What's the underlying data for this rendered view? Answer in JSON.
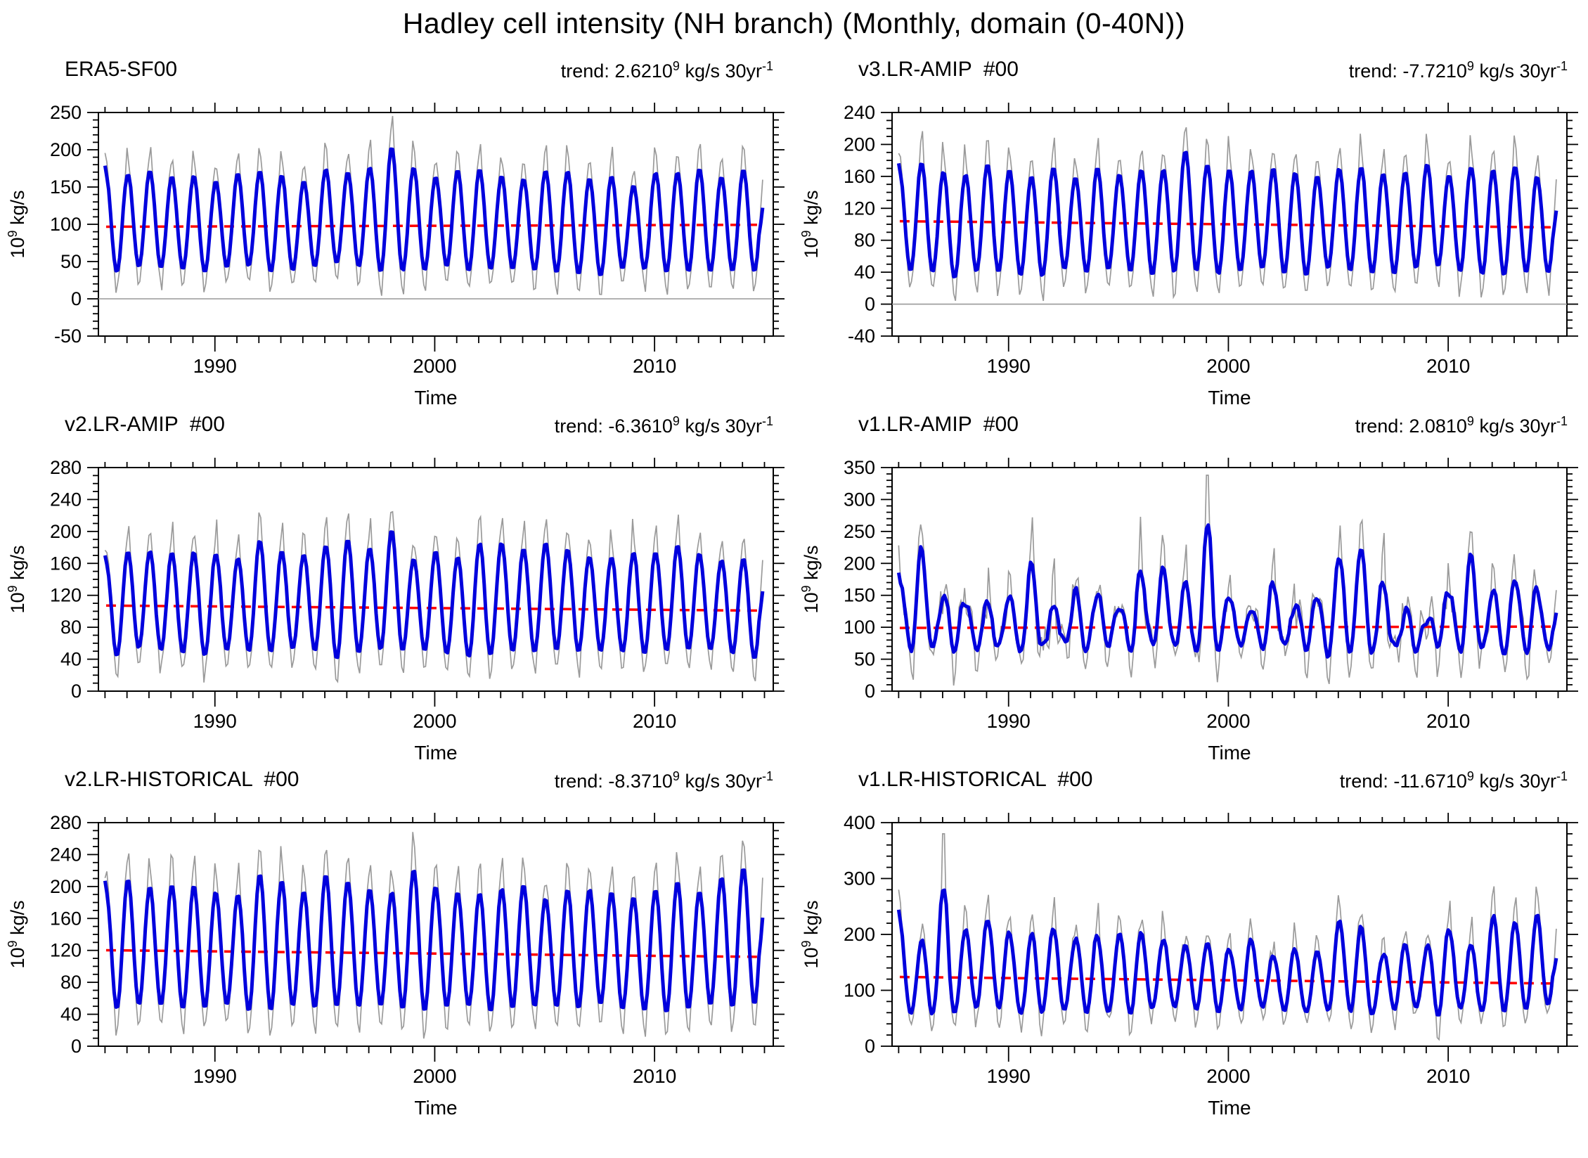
{
  "figure": {
    "title": "Hadley cell intensity (NH branch) (Monthly, domain (0-40N))"
  },
  "chart_data": {
    "type": "line",
    "title": "Hadley cell intensity (NH branch) (Monthly, domain (0-40N))",
    "xlabel": "Time",
    "ylabel": {
      "base": "10",
      "exp": "9",
      "unit": " kg/s"
    },
    "x_start_year": 1985,
    "x_years": 30,
    "xlim": [
      1984.7,
      2015.4
    ],
    "x_major_ticks": [
      1990,
      2000,
      2010
    ],
    "x_minor_step": 1,
    "series": [
      {
        "name": "monthly-raw",
        "color": "#9a9a9a"
      },
      {
        "name": "smoothed",
        "color": "#0000dd"
      },
      {
        "name": "linear-trend-per-30yr",
        "color": "#ff0000",
        "style": "dashed"
      }
    ],
    "colors": {
      "axis": "#000000",
      "zero_line": "#999999"
    },
    "panels": [
      {
        "name": "ERA5-SF00",
        "trend": {
          "text": "trend: 2.6210",
          "exp": "9",
          "unit": " kg/s 30yr",
          "unit_exp": "-1",
          "value": 2.62
        },
        "mean": 98,
        "ylim": [
          -50,
          250
        ],
        "ymajor": 50,
        "yminor": 10,
        "zero_line": true,
        "irregular": false,
        "sigma": 3.5,
        "spike": 30,
        "harm_max": 0,
        "seed": 11,
        "clamp_low": 2,
        "peaks": [
          178,
          185,
          190,
          186,
          182,
          178,
          186,
          192,
          183,
          176,
          183,
          190,
          186,
          228,
          190,
          186,
          190,
          194,
          186,
          181,
          186,
          191,
          184,
          178,
          170,
          183,
          193,
          188,
          182,
          186
        ],
        "troughs": [
          14,
          20,
          26,
          21,
          16,
          20,
          25,
          19,
          15,
          21,
          27,
          31,
          20,
          14,
          19,
          24,
          20,
          15,
          19,
          24,
          20,
          15,
          11,
          19,
          25,
          20,
          15,
          19,
          15,
          20
        ],
        "gray_spikes": {}
      },
      {
        "name": "v3.LR-AMIP  #00",
        "trend": {
          "text": "trend: -7.7210",
          "exp": "9",
          "unit": " kg/s 30yr",
          "unit_exp": "-1",
          "value": -7.72
        },
        "mean": 100,
        "ylim": [
          -40,
          240
        ],
        "ymajor": 40,
        "yminor": 10,
        "zero_line": true,
        "irregular": false,
        "sigma": 3.5,
        "spike": 32,
        "harm_max": 0,
        "seed": 22,
        "clamp_low": 2,
        "peaks": [
          180,
          190,
          184,
          175,
          191,
          186,
          179,
          190,
          172,
          185,
          181,
          190,
          187,
          216,
          190,
          182,
          186,
          191,
          185,
          180,
          190,
          186,
          180,
          186,
          191,
          181,
          186,
          191,
          186,
          176
        ],
        "troughs": [
          20,
          26,
          14,
          20,
          26,
          19,
          14,
          21,
          31,
          19,
          26,
          16,
          21,
          24,
          19,
          14,
          26,
          21,
          14,
          19,
          26,
          21,
          16,
          21,
          26,
          31,
          21,
          16,
          19,
          24
        ],
        "gray_spikes": {}
      },
      {
        "name": "v2.LR-AMIP  #00",
        "trend": {
          "text": "trend: -6.3610",
          "exp": "9",
          "unit": " kg/s 30yr",
          "unit_exp": "-1",
          "value": -6.36
        },
        "mean": 104,
        "ylim": [
          0,
          280
        ],
        "ymajor": 40,
        "yminor": 10,
        "zero_line": false,
        "irregular": false,
        "sigma": 4,
        "spike": 30,
        "harm_max": 0,
        "seed": 33,
        "clamp_low": 4,
        "peaks": [
          176,
          191,
          196,
          189,
          196,
          186,
          181,
          206,
          191,
          181,
          196,
          211,
          191,
          230,
          181,
          196,
          186,
          201,
          206,
          191,
          206,
          201,
          186,
          181,
          191,
          186,
          201,
          191,
          181,
          186
        ],
        "troughs": [
          31,
          26,
          36,
          31,
          24,
          31,
          36,
          26,
          31,
          41,
          26,
          21,
          31,
          26,
          36,
          31,
          26,
          21,
          31,
          26,
          31,
          26,
          36,
          31,
          26,
          31,
          26,
          36,
          31,
          26
        ],
        "gray_spikes": {}
      },
      {
        "name": "v1.LR-AMIP  #00",
        "trend": {
          "text": "trend: 2.0810",
          "exp": "9",
          "unit": " kg/s 30yr",
          "unit_exp": "-1",
          "value": 2.08
        },
        "mean": 100,
        "ylim": [
          0,
          350
        ],
        "ymajor": 50,
        "yminor": 10,
        "zero_line": false,
        "irregular": true,
        "sigma": 11,
        "spike": 55,
        "harm_max": 46,
        "seed": 44,
        "clamp_low": 8,
        "peaks": [
          200,
          230,
          165,
          150,
          122,
          166,
          212,
          132,
          161,
          172,
          151,
          186,
          191,
          172,
          236,
          152,
          131,
          166,
          146,
          161,
          221,
          236,
          171,
          146,
          121,
          156,
          206,
          176,
          206,
          166
        ],
        "troughs": [
          46,
          36,
          61,
          56,
          71,
          51,
          41,
          66,
          56,
          51,
          61,
          46,
          56,
          51,
          36,
          61,
          71,
          56,
          66,
          51,
          41,
          36,
          56,
          61,
          71,
          56,
          41,
          51,
          41,
          56
        ],
        "gray_spikes": {
          "14": 338
        }
      },
      {
        "name": "v2.LR-HISTORICAL  #00",
        "trend": {
          "text": "trend: -8.3710",
          "exp": "9",
          "unit": " kg/s 30yr",
          "unit_exp": "-1",
          "value": -8.37
        },
        "mean": 116,
        "ylim": [
          0,
          280
        ],
        "ymajor": 40,
        "yminor": 10,
        "zero_line": false,
        "irregular": false,
        "sigma": 4,
        "spike": 26,
        "harm_max": 0,
        "seed": 55,
        "clamp_low": 4,
        "peaks": [
          212,
          236,
          221,
          216,
          221,
          211,
          206,
          246,
          226,
          211,
          241,
          231,
          216,
          211,
          246,
          221,
          211,
          206,
          216,
          226,
          206,
          216,
          221,
          211,
          206,
          216,
          231,
          211,
          236,
          246
        ],
        "troughs": [
          26,
          21,
          31,
          26,
          21,
          31,
          26,
          16,
          26,
          31,
          21,
          26,
          31,
          26,
          16,
          26,
          31,
          26,
          21,
          26,
          31,
          21,
          26,
          31,
          26,
          21,
          16,
          31,
          21,
          26
        ],
        "gray_spikes": {}
      },
      {
        "name": "v1.LR-HISTORICAL  #00",
        "trend": {
          "text": "trend: -11.6710",
          "exp": "9",
          "unit": " kg/s 30yr",
          "unit_exp": "-1",
          "value": -11.67
        },
        "mean": 118,
        "ylim": [
          0,
          400
        ],
        "ymajor": 100,
        "yminor": 20,
        "zero_line": false,
        "irregular": true,
        "sigma": 7,
        "spike": 45,
        "harm_max": 22,
        "seed": 66,
        "clamp_low": 8,
        "peaks": [
          236,
          201,
          281,
          221,
          251,
          226,
          201,
          231,
          216,
          201,
          231,
          216,
          206,
          196,
          211,
          191,
          201,
          171,
          181,
          176,
          256,
          231,
          166,
          196,
          206,
          231,
          166,
          256,
          231,
          251
        ],
        "troughs": [
          41,
          36,
          31,
          46,
          51,
          41,
          36,
          46,
          51,
          41,
          36,
          46,
          56,
          51,
          41,
          46,
          51,
          56,
          46,
          51,
          36,
          41,
          56,
          46,
          41,
          36,
          56,
          31,
          41,
          46
        ],
        "gray_spikes": {
          "2": 380
        }
      }
    ]
  }
}
